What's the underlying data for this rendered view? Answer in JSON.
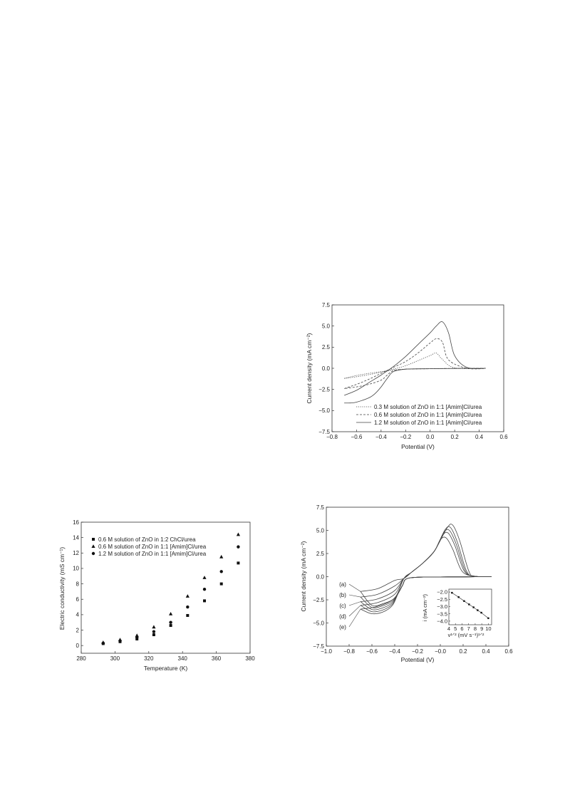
{
  "chart_data": [
    {
      "type": "line",
      "xlabel": "Potential (V)",
      "ylabel": "Current density (mA cm⁻²)",
      "xlim": [
        -0.8,
        0.6
      ],
      "ylim": [
        -7.5,
        7.5
      ],
      "xticks": [
        "−0.8",
        "−0.6",
        "−0.4",
        "−0.2",
        "0.0",
        "0.2",
        "0.4",
        "0.6"
      ],
      "yticks": [
        "7.5",
        "5.0",
        "2.5",
        "0.0",
        "−2.5",
        "−5.0",
        "−7.5"
      ],
      "legend_position": "bottom-right",
      "series": [
        {
          "name": "0.3 M solution of ZnO in 1:1 [Amim]Cl/urea",
          "style": "dotted",
          "x": [
            -0.7,
            -0.6,
            -0.5,
            -0.4,
            -0.3,
            -0.2,
            -0.1,
            0.0,
            0.05,
            0.1,
            0.2,
            0.45,
            0.2,
            0.0,
            -0.2,
            -0.3,
            -0.4,
            -0.5,
            -0.6,
            -0.7
          ],
          "y": [
            -1.2,
            -1.0,
            -0.75,
            -0.45,
            -0.1,
            0.3,
            0.9,
            1.5,
            1.8,
            1.05,
            0.05,
            0.0,
            -0.02,
            -0.04,
            -0.1,
            -0.2,
            -0.4,
            -0.6,
            -0.85,
            -1.2
          ]
        },
        {
          "name": "0.6 M solution of ZnO in 1:1 [Amim]Cl/urea",
          "style": "dashed",
          "x": [
            -0.7,
            -0.6,
            -0.5,
            -0.4,
            -0.3,
            -0.2,
            -0.1,
            0.0,
            0.05,
            0.1,
            0.15,
            0.3,
            0.45,
            0.2,
            0.0,
            -0.2,
            -0.3,
            -0.35,
            -0.4,
            -0.5,
            -0.6,
            -0.7
          ],
          "y": [
            -2.4,
            -1.9,
            -1.3,
            -0.6,
            0.1,
            0.8,
            1.8,
            3.0,
            3.5,
            3.1,
            1.0,
            0.0,
            0.0,
            -0.02,
            -0.05,
            -0.1,
            -0.3,
            -0.8,
            -1.4,
            -1.9,
            -2.2,
            -2.4
          ]
        },
        {
          "name": "1.2 M solution of ZnO in 1:1 [Amim]Cl/urea",
          "style": "solid",
          "x": [
            -0.7,
            -0.6,
            -0.5,
            -0.4,
            -0.3,
            -0.2,
            -0.1,
            0.0,
            0.05,
            0.1,
            0.15,
            0.2,
            0.3,
            0.45,
            0.2,
            0.0,
            -0.2,
            -0.3,
            -0.35,
            -0.4,
            -0.45,
            -0.5,
            -0.6,
            -0.65,
            -0.7
          ],
          "y": [
            -3.2,
            -2.6,
            -1.7,
            -0.8,
            0.2,
            1.4,
            2.8,
            4.2,
            5.0,
            5.5,
            4.2,
            1.5,
            0.1,
            0.0,
            -0.02,
            -0.05,
            -0.1,
            -0.4,
            -1.2,
            -2.2,
            -3.0,
            -3.5,
            -4.0,
            -4.1,
            -4.1
          ]
        }
      ]
    },
    {
      "type": "scatter",
      "xlabel": "Temperature (K)",
      "ylabel": "Electric conductivity (mS cm⁻¹)",
      "xlim": [
        280,
        380
      ],
      "ylim": [
        -1,
        16
      ],
      "xticks": [
        "280",
        "300",
        "320",
        "340",
        "360",
        "380"
      ],
      "yticks": [
        "0",
        "2",
        "4",
        "6",
        "8",
        "10",
        "12",
        "14",
        "16"
      ],
      "legend_position": "top-left",
      "x": [
        293,
        303,
        313,
        323,
        333,
        343,
        353,
        363,
        373
      ],
      "series": [
        {
          "name": "0.6 M solution of ZnO in 1:2 ChCl/urea",
          "marker": "square",
          "values": [
            0.25,
            0.5,
            0.85,
            1.4,
            2.6,
            3.9,
            5.8,
            8.0,
            10.7
          ]
        },
        {
          "name": "0.6 M solution of ZnO in 1:1 [Amim]Cl/urea",
          "marker": "triangle",
          "values": [
            0.4,
            0.75,
            1.3,
            2.4,
            4.1,
            6.4,
            8.8,
            11.5,
            14.4
          ]
        },
        {
          "name": "1.2 M solution of ZnO in 1:1 [Amim]Cl/urea",
          "marker": "circle",
          "values": [
            0.3,
            0.6,
            1.05,
            1.8,
            3.0,
            5.0,
            7.3,
            9.6,
            12.8
          ]
        }
      ]
    },
    {
      "type": "line",
      "xlabel": "Potential (V)",
      "ylabel": "Current density (mA cm⁻²)",
      "xlim": [
        -1.0,
        0.6
      ],
      "ylim": [
        -7.5,
        7.5
      ],
      "xticks": [
        "−1.0",
        "−0.8",
        "−0.6",
        "−0.4",
        "−0.2",
        "−0.0",
        "0.2",
        "0.4",
        "0.6"
      ],
      "yticks": [
        "7.5",
        "5.0",
        "2.5",
        "0.0",
        "−2.5",
        "−5.0",
        "−7.5"
      ],
      "series": [
        {
          "name": "(a)",
          "peak_x": 0.05,
          "peak_y": 4.2,
          "end_y": -1.6
        },
        {
          "name": "(b)",
          "peak_x": 0.07,
          "peak_y": 4.7,
          "end_y": -2.2
        },
        {
          "name": "(c)",
          "peak_x": 0.08,
          "peak_y": 5.0,
          "end_y": -2.7
        },
        {
          "name": "(d)",
          "peak_x": 0.09,
          "peak_y": 5.3,
          "end_y": -3.1
        },
        {
          "name": "(e)",
          "peak_x": 0.11,
          "peak_y": 5.55,
          "end_y": -3.5
        }
      ],
      "inset": {
        "type": "line",
        "xlabel": "v¹ᐟ² (mV s⁻¹)¹ᐟ²",
        "ylabel": "i (mA cm⁻²)",
        "xlim": [
          4,
          10.5
        ],
        "ylim": [
          -4.25,
          -1.8
        ],
        "xticks": [
          "4",
          "5",
          "6",
          "7",
          "8",
          "9",
          "10"
        ],
        "yticks": [
          "−2.0",
          "−2.5",
          "−3.0",
          "−3.5",
          "−4.0"
        ],
        "x": [
          4.47,
          5.48,
          6.32,
          7.07,
          7.75,
          8.37,
          8.94,
          10.0
        ],
        "y": [
          -2.05,
          -2.35,
          -2.62,
          -2.85,
          -3.05,
          -3.25,
          -3.42,
          -3.8
        ]
      }
    }
  ]
}
